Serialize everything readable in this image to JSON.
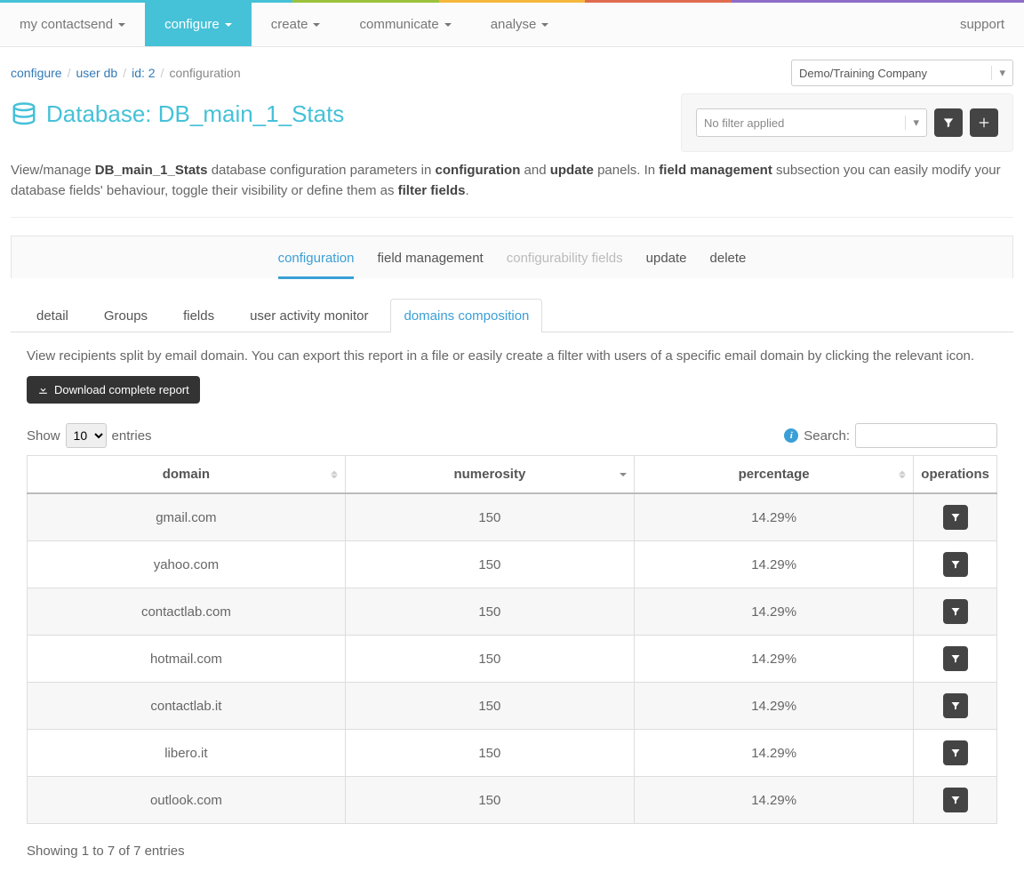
{
  "stripe_colors": [
    "#45c1d8",
    "#45c1d8",
    "#9cc23d",
    "#f5b83d",
    "#e06c4f",
    "#8e6cc7",
    "#8e6cc7"
  ],
  "nav": {
    "items": [
      {
        "label": "my contactsend",
        "has_caret": true,
        "active": false
      },
      {
        "label": "configure",
        "has_caret": true,
        "active": true
      },
      {
        "label": "create",
        "has_caret": true,
        "active": false
      },
      {
        "label": "communicate",
        "has_caret": true,
        "active": false
      },
      {
        "label": "analyse",
        "has_caret": true,
        "active": false
      }
    ],
    "support": "support"
  },
  "breadcrumb": {
    "items": [
      {
        "label": "configure",
        "link": true
      },
      {
        "label": "user db",
        "link": true
      },
      {
        "label": "id: 2",
        "link": true
      },
      {
        "label": "configuration",
        "link": false
      }
    ]
  },
  "company_select": "Demo/Training Company",
  "page_title_prefix": "Database: ",
  "page_title_name": "DB_main_1_Stats",
  "filter_placeholder": "No filter applied",
  "intro": {
    "t1": "View/manage ",
    "b1": "DB_main_1_Stats",
    "t2": " database configuration parameters in ",
    "b2": "configuration",
    "t3": " and ",
    "b3": "update",
    "t4": " panels. In ",
    "b4": "field management",
    "t5": " subsection you can easily modify your database fields' behaviour, toggle their visibility or define them as ",
    "b5": "filter fields",
    "t6": "."
  },
  "maintabs": [
    {
      "label": "configuration",
      "active": true,
      "disabled": false
    },
    {
      "label": "field management",
      "active": false,
      "disabled": false
    },
    {
      "label": "configurability fields",
      "active": false,
      "disabled": true
    },
    {
      "label": "update",
      "active": false,
      "disabled": false
    },
    {
      "label": "delete",
      "active": false,
      "disabled": false
    }
  ],
  "subtabs": [
    {
      "label": "detail",
      "active": false
    },
    {
      "label": "Groups",
      "active": false
    },
    {
      "label": "fields",
      "active": false
    },
    {
      "label": "user activity monitor",
      "active": false
    },
    {
      "label": "domains composition",
      "active": true
    }
  ],
  "tab_desc": "View recipients split by email domain. You can export this report in a file or easily create a filter with users of a specific email domain by clicking the relevant icon.",
  "download_btn": "Download complete report",
  "show_label": "Show",
  "entries_label": "entries",
  "show_value": "10",
  "search_label": "Search:",
  "columns": {
    "domain": "domain",
    "numerosity": "numerosity",
    "percentage": "percentage",
    "operations": "operations"
  },
  "rows": [
    {
      "domain": "gmail.com",
      "numerosity": "150",
      "percentage": "14.29%"
    },
    {
      "domain": "yahoo.com",
      "numerosity": "150",
      "percentage": "14.29%"
    },
    {
      "domain": "contactlab.com",
      "numerosity": "150",
      "percentage": "14.29%"
    },
    {
      "domain": "hotmail.com",
      "numerosity": "150",
      "percentage": "14.29%"
    },
    {
      "domain": "contactlab.it",
      "numerosity": "150",
      "percentage": "14.29%"
    },
    {
      "domain": "libero.it",
      "numerosity": "150",
      "percentage": "14.29%"
    },
    {
      "domain": "outlook.com",
      "numerosity": "150",
      "percentage": "14.29%"
    }
  ],
  "footer_info": "Showing 1 to 7 of 7 entries"
}
